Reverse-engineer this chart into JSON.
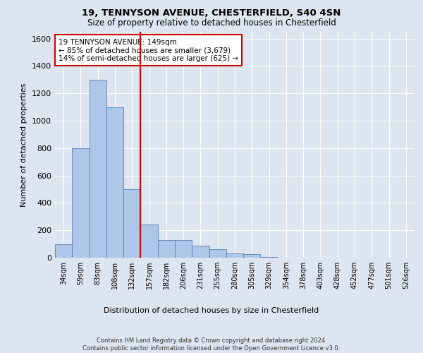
{
  "title1": "19, TENNYSON AVENUE, CHESTERFIELD, S40 4SN",
  "title2": "Size of property relative to detached houses in Chesterfield",
  "xlabel": "Distribution of detached houses by size in Chesterfield",
  "ylabel": "Number of detached properties",
  "bin_labels": [
    "34sqm",
    "59sqm",
    "83sqm",
    "108sqm",
    "132sqm",
    "157sqm",
    "182sqm",
    "206sqm",
    "231sqm",
    "255sqm",
    "280sqm",
    "305sqm",
    "329sqm",
    "354sqm",
    "378sqm",
    "403sqm",
    "428sqm",
    "452sqm",
    "477sqm",
    "501sqm",
    "526sqm"
  ],
  "bar_heights": [
    100,
    800,
    1300,
    1100,
    500,
    240,
    130,
    130,
    90,
    60,
    30,
    25,
    5,
    0,
    0,
    0,
    0,
    0,
    0,
    0,
    0
  ],
  "bar_color": "#aec6e8",
  "bar_edge_color": "#5580b0",
  "vline_x": 4.5,
  "vline_color": "#cc0000",
  "annotation_text": "19 TENNYSON AVENUE: 149sqm\n← 85% of detached houses are smaller (3,679)\n14% of semi-detached houses are larger (625) →",
  "annotation_box_color": "#ffffff",
  "annotation_box_edge": "#cc0000",
  "ylim": [
    0,
    1650
  ],
  "yticks": [
    0,
    200,
    400,
    600,
    800,
    1000,
    1200,
    1400,
    1600
  ],
  "footnote": "Contains HM Land Registry data © Crown copyright and database right 2024.\nContains public sector information licensed under the Open Government Licence v3.0.",
  "background_color": "#dde5f0",
  "plot_background": "#dde5f0",
  "grid_color": "#ffffff"
}
